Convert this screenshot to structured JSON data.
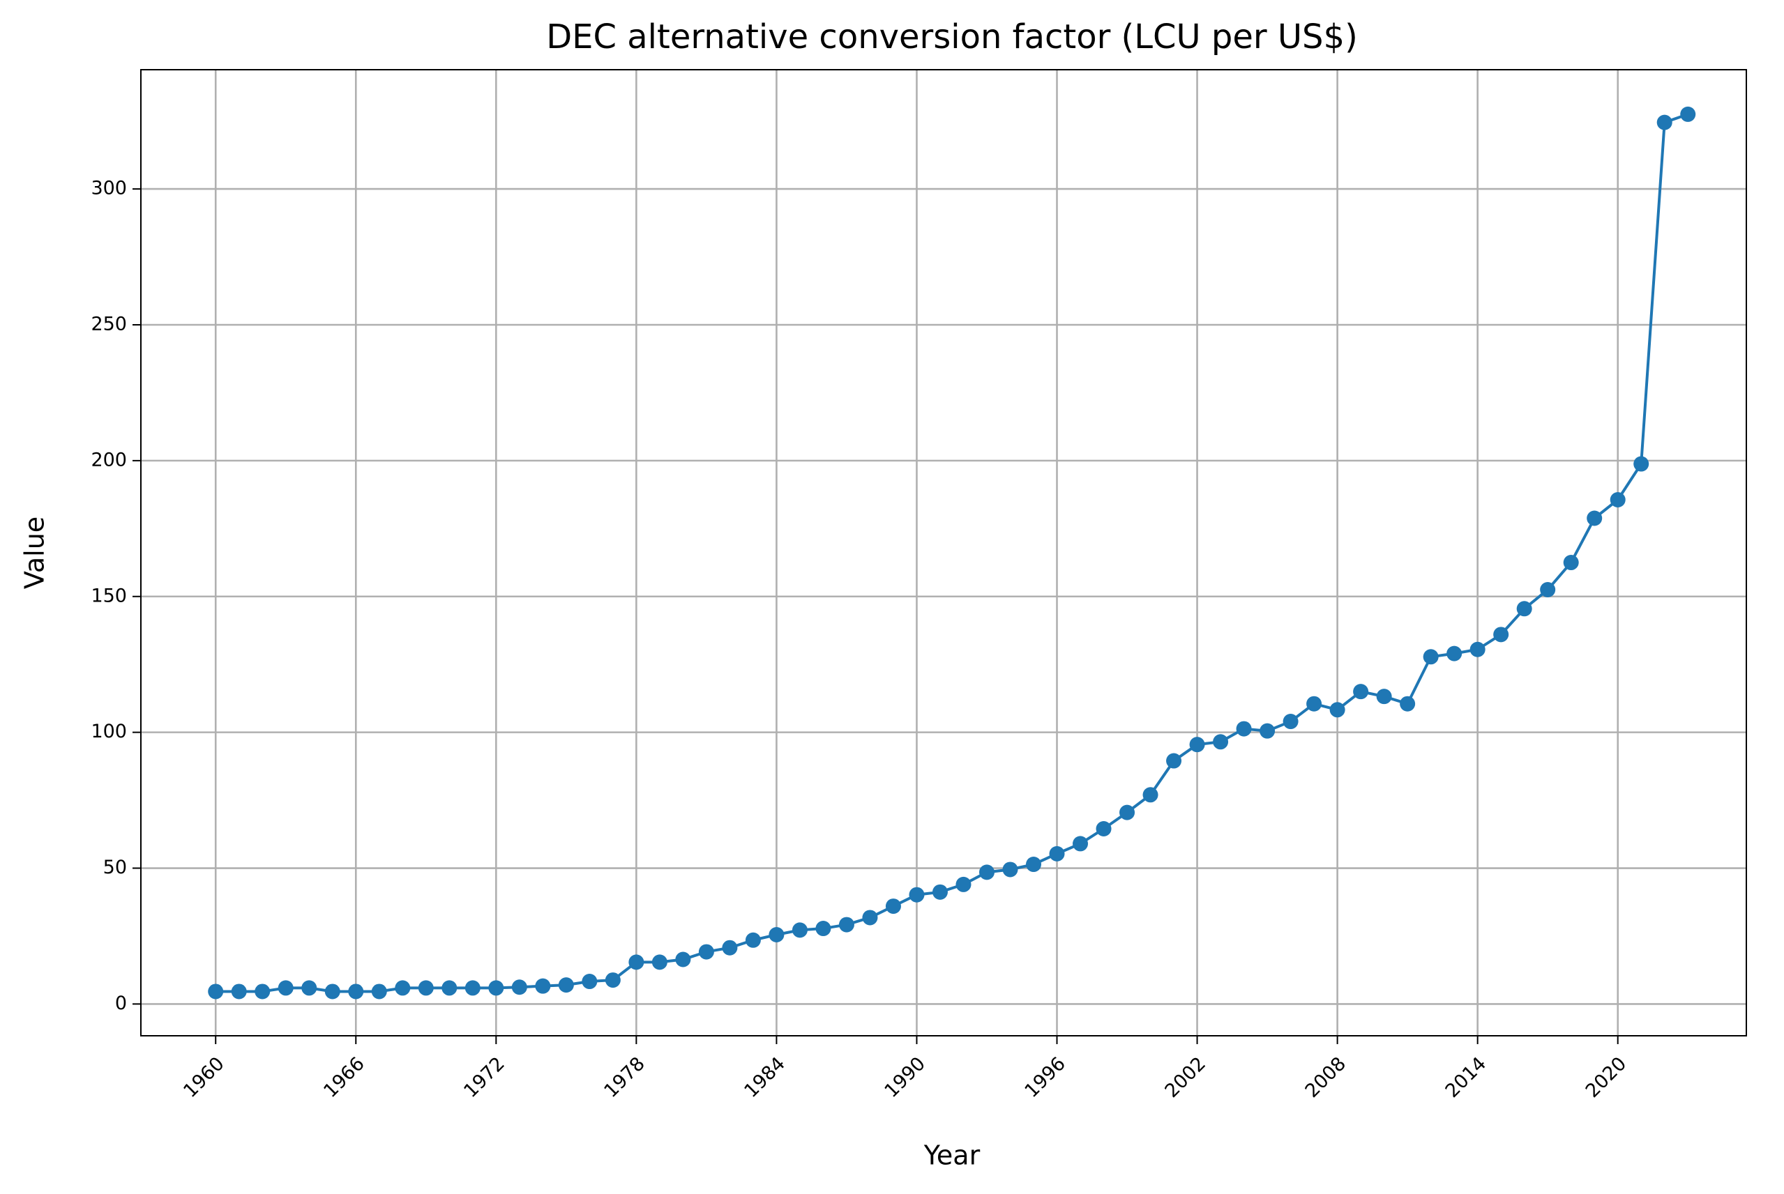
{
  "chart_data": {
    "type": "line",
    "title": "DEC alternative conversion factor (LCU per US$)",
    "x_label": "Year",
    "y_label": "Value",
    "x": [
      1960,
      1961,
      1962,
      1963,
      1964,
      1965,
      1966,
      1967,
      1968,
      1969,
      1970,
      1971,
      1972,
      1973,
      1974,
      1975,
      1976,
      1977,
      1978,
      1979,
      1980,
      1981,
      1982,
      1983,
      1984,
      1985,
      1986,
      1987,
      1988,
      1989,
      1990,
      1991,
      1992,
      1993,
      1994,
      1995,
      1996,
      1997,
      1998,
      1999,
      2000,
      2001,
      2002,
      2003,
      2004,
      2005,
      2006,
      2007,
      2008,
      2009,
      2010,
      2011,
      2012,
      2013,
      2014,
      2015,
      2016,
      2017,
      2018,
      2019,
      2020,
      2021,
      2022,
      2023
    ],
    "series": [
      {
        "color": "#1f77b4",
        "values": [
          4.6,
          4.6,
          4.6,
          5.9,
          5.9,
          4.6,
          4.6,
          4.6,
          5.9,
          5.9,
          5.9,
          5.9,
          5.9,
          6.2,
          6.6,
          7.0,
          8.3,
          8.8,
          15.4,
          15.4,
          16.4,
          19.2,
          20.7,
          23.5,
          25.5,
          27.2,
          27.8,
          29.2,
          31.8,
          36.0,
          40.2,
          41.2,
          44.0,
          48.5,
          49.5,
          51.4,
          55.3,
          59.0,
          64.5,
          70.5,
          77.0,
          89.5,
          95.5,
          96.5,
          101.3,
          100.5,
          104.0,
          110.5,
          108.3,
          115.0,
          113.2,
          110.5,
          127.8,
          129.0,
          130.5,
          136.0,
          145.5,
          152.5,
          162.5,
          178.8,
          185.6,
          198.8,
          324.5,
          327.5
        ]
      }
    ],
    "xlim": [
      1956.8,
      2025.5
    ],
    "xticks": [
      1960,
      1966,
      1972,
      1978,
      1984,
      1990,
      1996,
      2002,
      2008,
      2014,
      2020
    ],
    "ylim": [
      -11.7,
      343.9
    ],
    "yticks": [
      0,
      50,
      100,
      150,
      200,
      250,
      300
    ],
    "grid": true
  }
}
